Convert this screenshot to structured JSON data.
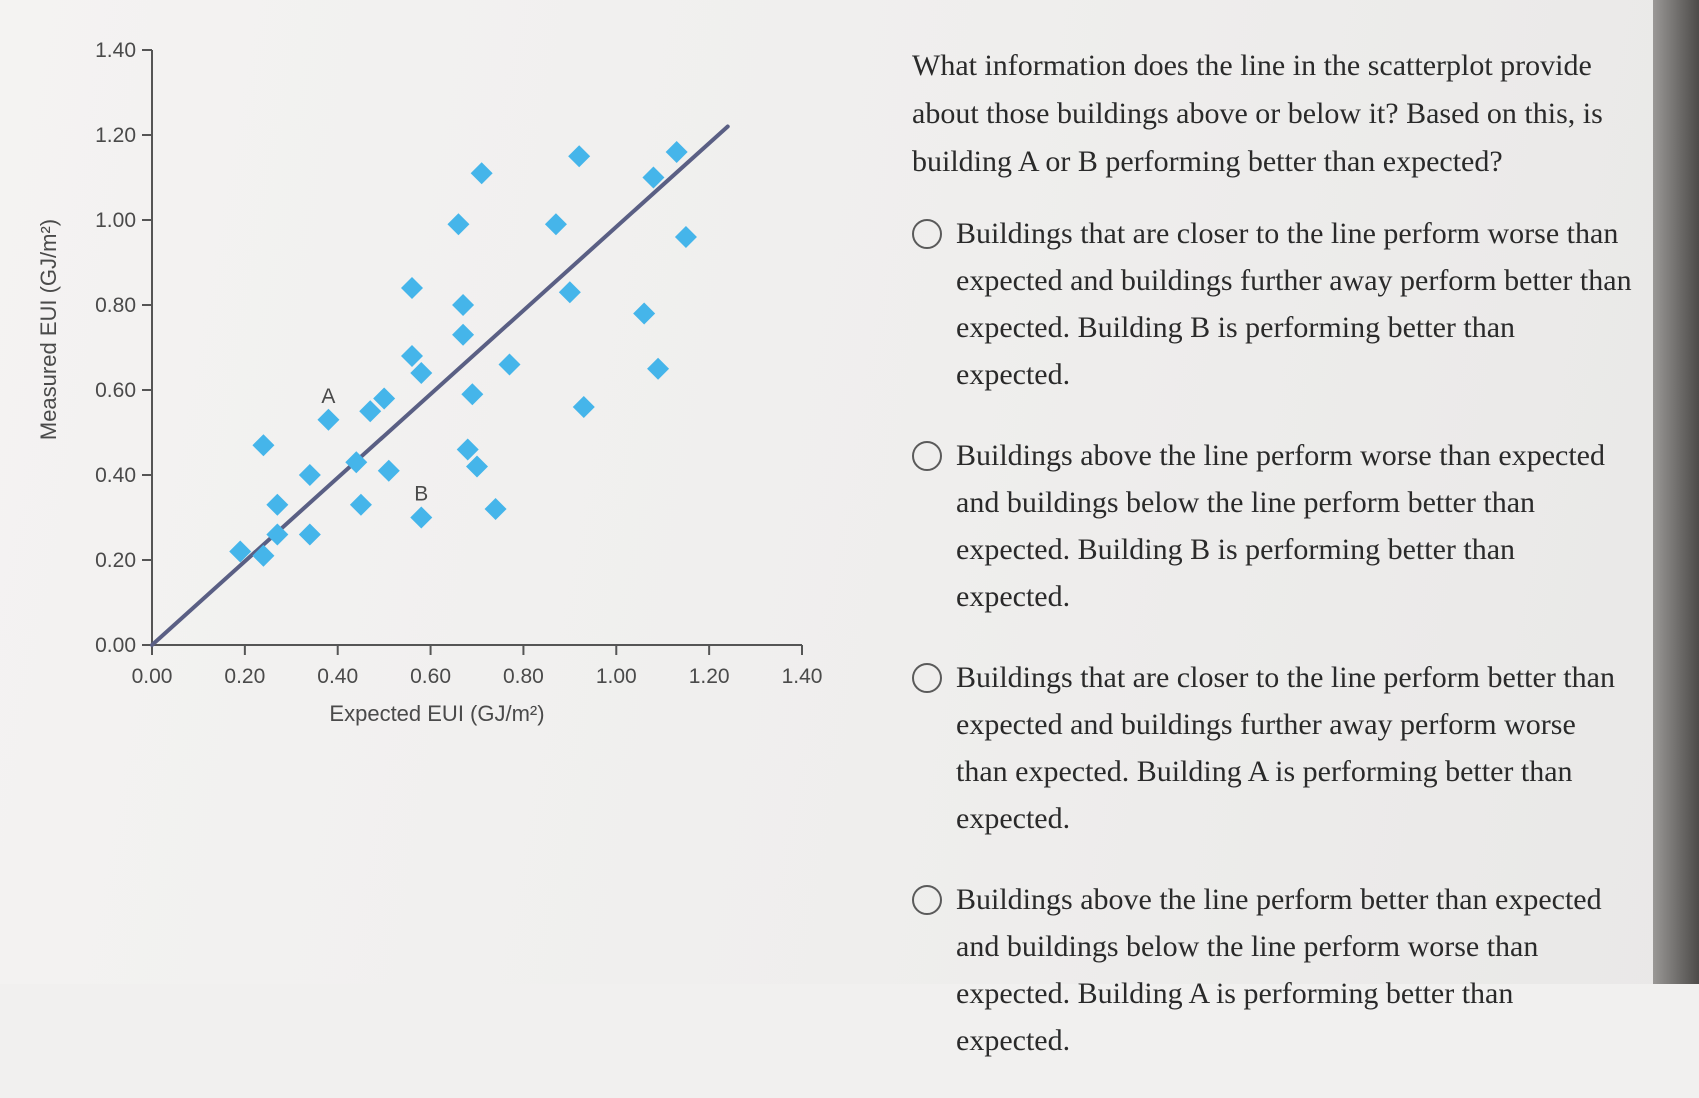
{
  "question": {
    "text": "What information does the line in the scatterplot provide about those buildings above or below it? Based on this, is building A or B performing better than expected?"
  },
  "options": [
    {
      "label": "Buildings that are closer to the line perform worse than expected and buildings further away perform better than expected. Building B is performing better than expected."
    },
    {
      "label": "Buildings above the line perform worse than expected and buildings below the line perform better than expected. Building B is performing better than expected."
    },
    {
      "label": "Buildings that are closer to the line perform better than expected and buildings further away perform worse than expected. Building A is performing better than expected."
    },
    {
      "label": "Buildings above the line perform better than expected and buildings below the line perform worse than expected. Building A is performing better than expected."
    }
  ],
  "colors": {
    "marker": "#45b5ea",
    "line": "#5a5f84",
    "axis": "#555555",
    "text": "#2a2a2a"
  },
  "chart_data": {
    "type": "scatter",
    "xlabel": "Expected EUI (GJ/m²)",
    "ylabel": "Measured EUI (GJ/m²)",
    "xlim": [
      0,
      1.4
    ],
    "ylim": [
      0,
      1.4
    ],
    "x_ticks": [
      "0.00",
      "0.20",
      "0.40",
      "0.60",
      "0.80",
      "1.00",
      "1.20",
      "1.40"
    ],
    "y_ticks": [
      "0.00",
      "0.20",
      "0.40",
      "0.60",
      "0.80",
      "1.00",
      "1.20",
      "1.40"
    ],
    "reference_line": {
      "x": [
        0,
        1.24
      ],
      "y": [
        0,
        1.22
      ]
    },
    "points": [
      {
        "x": 0.19,
        "y": 0.22
      },
      {
        "x": 0.24,
        "y": 0.21
      },
      {
        "x": 0.27,
        "y": 0.26
      },
      {
        "x": 0.34,
        "y": 0.26
      },
      {
        "x": 0.27,
        "y": 0.33
      },
      {
        "x": 0.24,
        "y": 0.47
      },
      {
        "x": 0.34,
        "y": 0.4
      },
      {
        "x": 0.38,
        "y": 0.53,
        "label": "A"
      },
      {
        "x": 0.44,
        "y": 0.43
      },
      {
        "x": 0.45,
        "y": 0.33
      },
      {
        "x": 0.47,
        "y": 0.55
      },
      {
        "x": 0.5,
        "y": 0.58
      },
      {
        "x": 0.51,
        "y": 0.41
      },
      {
        "x": 0.56,
        "y": 0.68
      },
      {
        "x": 0.58,
        "y": 0.64
      },
      {
        "x": 0.56,
        "y": 0.84
      },
      {
        "x": 0.58,
        "y": 0.3,
        "label": "B"
      },
      {
        "x": 0.67,
        "y": 0.8
      },
      {
        "x": 0.67,
        "y": 0.73
      },
      {
        "x": 0.68,
        "y": 0.46
      },
      {
        "x": 0.7,
        "y": 0.42
      },
      {
        "x": 0.69,
        "y": 0.59
      },
      {
        "x": 0.66,
        "y": 0.99
      },
      {
        "x": 0.71,
        "y": 1.11
      },
      {
        "x": 0.74,
        "y": 0.32
      },
      {
        "x": 0.77,
        "y": 0.66
      },
      {
        "x": 0.87,
        "y": 0.99
      },
      {
        "x": 0.9,
        "y": 0.83
      },
      {
        "x": 0.92,
        "y": 1.15
      },
      {
        "x": 0.93,
        "y": 0.56
      },
      {
        "x": 1.06,
        "y": 0.78
      },
      {
        "x": 1.08,
        "y": 1.1
      },
      {
        "x": 1.09,
        "y": 0.65
      },
      {
        "x": 1.13,
        "y": 1.16
      },
      {
        "x": 1.15,
        "y": 0.96
      }
    ]
  }
}
